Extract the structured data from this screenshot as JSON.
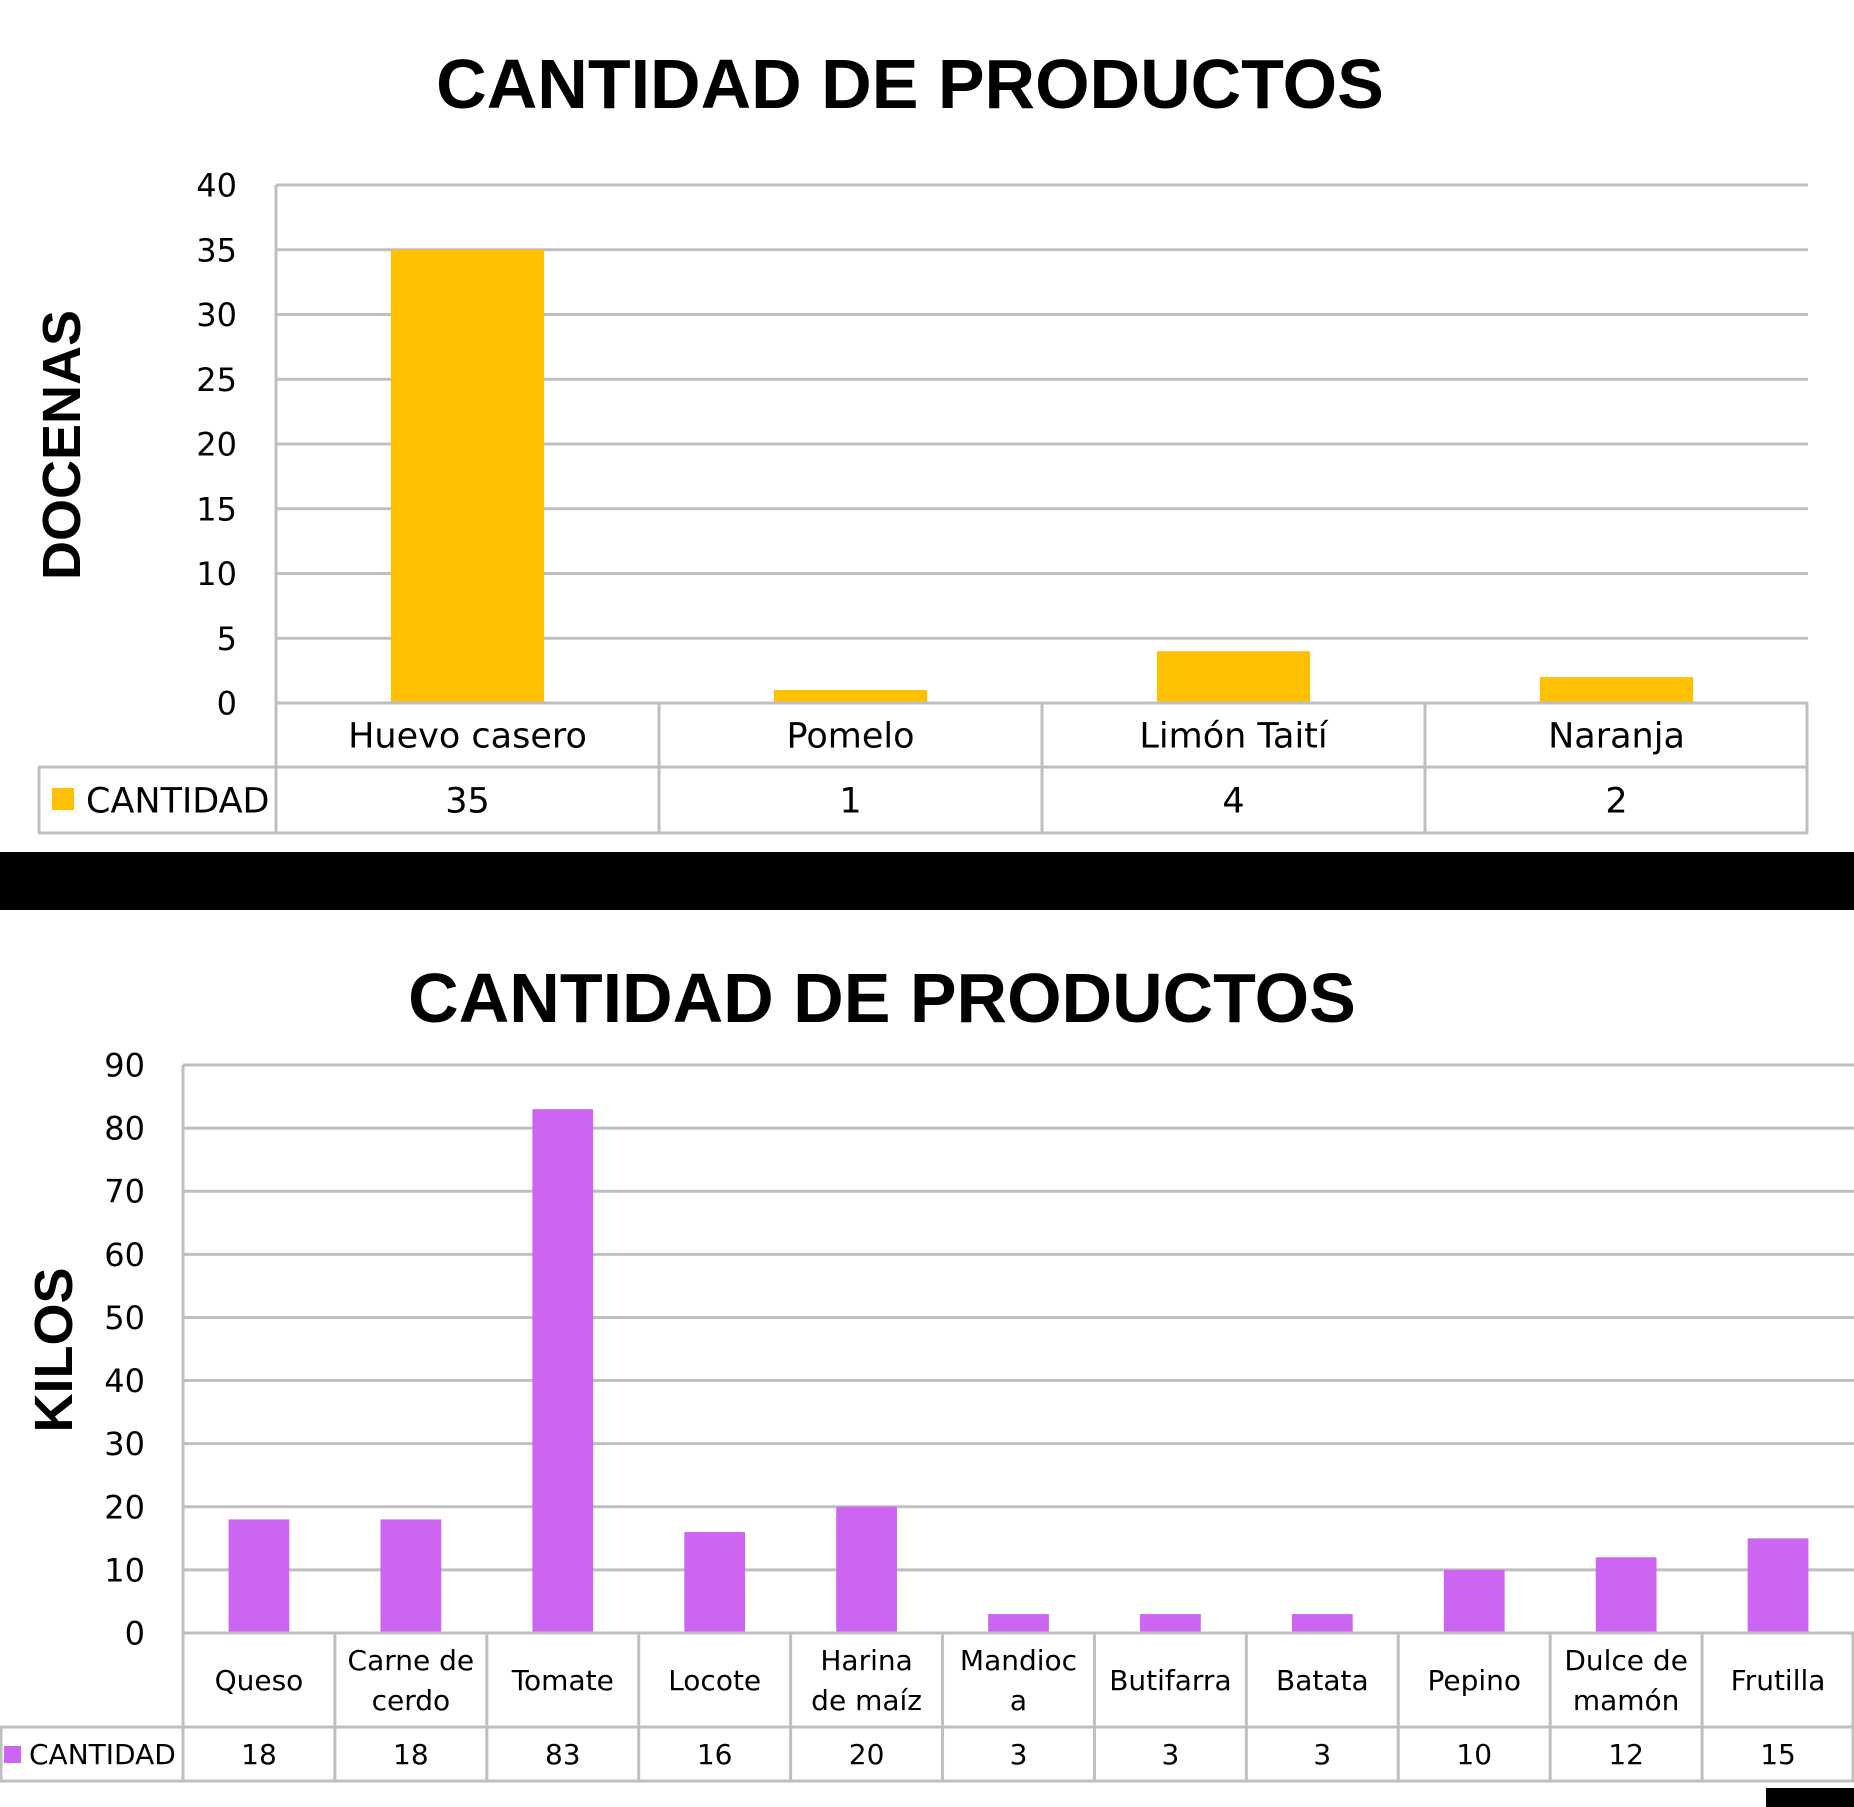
{
  "chart_data": [
    {
      "type": "bar",
      "title": "CANTIDAD DE PRODUCTOS",
      "ylabel": "DOCENAS",
      "xlabel": "",
      "ylim": [
        0,
        40
      ],
      "yticks": [
        0,
        5,
        10,
        15,
        20,
        25,
        30,
        35,
        40
      ],
      "grid": true,
      "legend": "data-table",
      "categories": [
        [
          "Huevo casero"
        ],
        [
          "Pomelo"
        ],
        [
          "Limón Taití"
        ],
        [
          "Naranja"
        ]
      ],
      "series": [
        {
          "name": "CANTIDAD",
          "color": "#FFC000",
          "values": [
            35,
            1,
            4,
            2
          ]
        }
      ]
    },
    {
      "type": "bar",
      "title": "CANTIDAD DE PRODUCTOS",
      "ylabel": "KILOS",
      "xlabel": "",
      "ylim": [
        0,
        90
      ],
      "yticks": [
        0,
        10,
        20,
        30,
        40,
        50,
        60,
        70,
        80,
        90
      ],
      "grid": true,
      "legend": "data-table",
      "categories": [
        [
          "Queso"
        ],
        [
          "Carne de",
          "cerdo"
        ],
        [
          "Tomate"
        ],
        [
          "Locote"
        ],
        [
          "Harina",
          "de maíz"
        ],
        [
          "Mandioc",
          "a"
        ],
        [
          "Butifarra"
        ],
        [
          "Batata"
        ],
        [
          "Pepino"
        ],
        [
          "Dulce de",
          "mamón"
        ],
        [
          "Frutilla"
        ]
      ],
      "series": [
        {
          "name": "CANTIDAD",
          "color": "#CC66F2",
          "values": [
            18,
            18,
            83,
            16,
            20,
            3,
            3,
            3,
            10,
            12,
            15
          ]
        }
      ]
    }
  ]
}
